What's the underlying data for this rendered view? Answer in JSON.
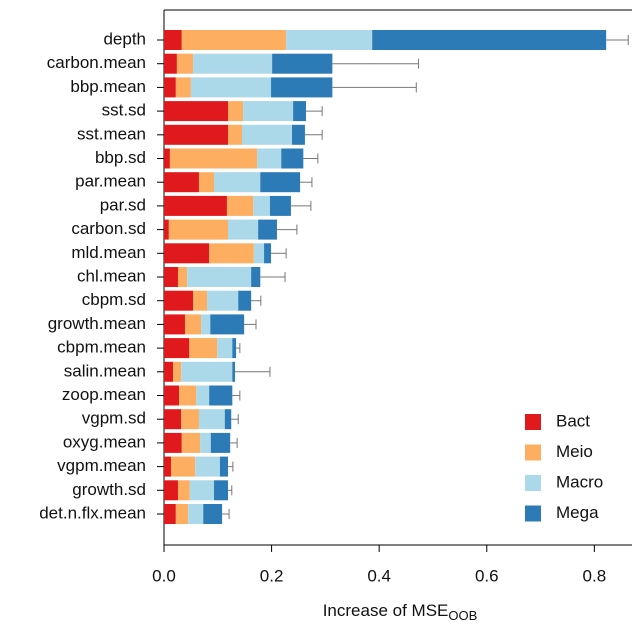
{
  "chart_data": {
    "type": "stacked-barh",
    "categories": [
      "depth",
      "carbon.mean",
      "bbp.mean",
      "sst.sd",
      "sst.mean",
      "bbp.sd",
      "par.mean",
      "par.sd",
      "carbon.sd",
      "mld.mean",
      "chl.mean",
      "cbpm.sd",
      "growth.mean",
      "cbpm.mean",
      "salin.mean",
      "zoop.mean",
      "vgpm.sd",
      "oxyg.mean",
      "vgpm.mean",
      "growth.sd",
      "det.n.flx.mean"
    ],
    "series": [
      {
        "name": "Bact",
        "color": "#e0191c",
        "values": [
          0.033,
          0.024,
          0.022,
          0.119,
          0.119,
          0.011,
          0.065,
          0.117,
          0.009,
          0.084,
          0.026,
          0.054,
          0.039,
          0.047,
          0.017,
          0.028,
          0.032,
          0.033,
          0.013,
          0.026,
          0.022
        ]
      },
      {
        "name": "Meio",
        "color": "#fdae61",
        "values": [
          0.194,
          0.03,
          0.028,
          0.028,
          0.026,
          0.162,
          0.028,
          0.049,
          0.11,
          0.083,
          0.017,
          0.026,
          0.03,
          0.052,
          0.015,
          0.032,
          0.033,
          0.034,
          0.045,
          0.022,
          0.023
        ]
      },
      {
        "name": "Macro",
        "color": "#abd9e9",
        "values": [
          0.16,
          0.147,
          0.149,
          0.093,
          0.093,
          0.045,
          0.086,
          0.031,
          0.056,
          0.019,
          0.119,
          0.058,
          0.017,
          0.028,
          0.095,
          0.024,
          0.048,
          0.02,
          0.046,
          0.045,
          0.028
        ]
      },
      {
        "name": "Mega",
        "color": "#2c7bb6",
        "values": [
          0.435,
          0.112,
          0.114,
          0.024,
          0.024,
          0.041,
          0.074,
          0.039,
          0.035,
          0.013,
          0.017,
          0.024,
          0.063,
          0.007,
          0.005,
          0.043,
          0.012,
          0.036,
          0.015,
          0.026,
          0.035
        ]
      }
    ],
    "errors": [
      0.041,
      0.16,
      0.156,
      0.03,
      0.032,
      0.027,
      0.022,
      0.037,
      0.037,
      0.028,
      0.046,
      0.018,
      0.022,
      0.007,
      0.065,
      0.014,
      0.013,
      0.013,
      0.009,
      0.007,
      0.013
    ],
    "x_label": "Increase of MSE",
    "x_label_subscript": "OOB",
    "xlim": [
      0,
      0.87
    ],
    "xticks": [
      {
        "value": 0,
        "label": "0.0"
      },
      {
        "value": 0.2,
        "label": "0.2"
      },
      {
        "value": 0.4,
        "label": "0.4"
      },
      {
        "value": 0.6,
        "label": "0.6"
      },
      {
        "value": 0.8,
        "label": "0.8"
      }
    ],
    "legend": "bottom-right"
  }
}
